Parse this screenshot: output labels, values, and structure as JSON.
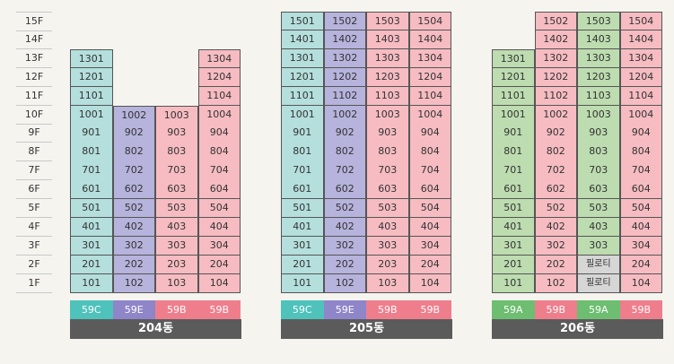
{
  "colors": {
    "cyan": "#b4dfdd",
    "purple": "#b6b3dc",
    "pink": "#f6bcc2",
    "green": "#bddcb0",
    "gray": "#d6d6d6",
    "cyan_badge": "#4fc2bb",
    "purple_badge": "#8f85c9",
    "pink_badge": "#ef7e8c",
    "green_badge": "#6dbe71"
  },
  "floors": [
    "15F",
    "14F",
    "13F",
    "12F",
    "11F",
    "10F",
    "9F",
    "8F",
    "7F",
    "6F",
    "5F",
    "4F",
    "3F",
    "2F",
    "1F"
  ],
  "buildings": [
    {
      "name": "204동",
      "columns": [
        {
          "type": "59C",
          "color": "cyan",
          "units": [
            null,
            null,
            "1301",
            "1201",
            "1101",
            "1001",
            "901",
            "801",
            "701",
            "601",
            "501",
            "401",
            "301",
            "201",
            "101"
          ]
        },
        {
          "type": "59E",
          "color": "purple",
          "units": [
            null,
            null,
            null,
            null,
            null,
            "1002",
            "902",
            "802",
            "702",
            "602",
            "502",
            "402",
            "302",
            "202",
            "102"
          ]
        },
        {
          "type": "59B",
          "color": "pink",
          "units": [
            null,
            null,
            null,
            null,
            null,
            "1003",
            "903",
            "803",
            "703",
            "603",
            "503",
            "403",
            "303",
            "203",
            "103"
          ]
        },
        {
          "type": "59B",
          "color": "pink",
          "units": [
            null,
            null,
            "1304",
            "1204",
            "1104",
            "1004",
            "904",
            "804",
            "704",
            "604",
            "504",
            "404",
            "304",
            "204",
            "104"
          ]
        }
      ]
    },
    {
      "name": "205동",
      "columns": [
        {
          "type": "59C",
          "color": "cyan",
          "units": [
            "1501",
            "1401",
            "1301",
            "1201",
            "1101",
            "1001",
            "901",
            "801",
            "701",
            "601",
            "501",
            "401",
            "301",
            "201",
            "101"
          ]
        },
        {
          "type": "59E",
          "color": "purple",
          "units": [
            "1502",
            "1402",
            "1302",
            "1202",
            "1102",
            "1002",
            "902",
            "802",
            "702",
            "602",
            "502",
            "402",
            "302",
            "202",
            "102"
          ]
        },
        {
          "type": "59B",
          "color": "pink",
          "units": [
            "1503",
            "1403",
            "1303",
            "1203",
            "1103",
            "1003",
            "903",
            "803",
            "703",
            "603",
            "503",
            "403",
            "303",
            "203",
            "103"
          ]
        },
        {
          "type": "59B",
          "color": "pink",
          "units": [
            "1504",
            "1404",
            "1304",
            "1204",
            "1104",
            "1004",
            "904",
            "804",
            "704",
            "604",
            "504",
            "404",
            "304",
            "204",
            "104"
          ]
        }
      ]
    },
    {
      "name": "206동",
      "columns": [
        {
          "type": "59A",
          "color": "green",
          "units": [
            null,
            null,
            "1301",
            "1201",
            "1101",
            "1001",
            "901",
            "801",
            "701",
            "601",
            "501",
            "401",
            "301",
            "201",
            "101"
          ]
        },
        {
          "type": "59B",
          "color": "pink",
          "units": [
            "1502",
            "1402",
            "1302",
            "1202",
            "1102",
            "1002",
            "902",
            "802",
            "702",
            "602",
            "502",
            "402",
            "302",
            "202",
            "102"
          ]
        },
        {
          "type": "59A",
          "color": "green",
          "units": [
            "1503",
            "1403",
            "1303",
            "1203",
            "1103",
            "1003",
            "903",
            "803",
            "703",
            "603",
            "503",
            "403",
            "303",
            "필로티",
            "필로티"
          ]
        },
        {
          "type": "59B",
          "color": "pink",
          "units": [
            "1504",
            "1404",
            "1304",
            "1204",
            "1104",
            "1004",
            "904",
            "804",
            "704",
            "604",
            "504",
            "404",
            "304",
            "204",
            "104"
          ]
        }
      ]
    }
  ],
  "piloti_label": "필로티"
}
